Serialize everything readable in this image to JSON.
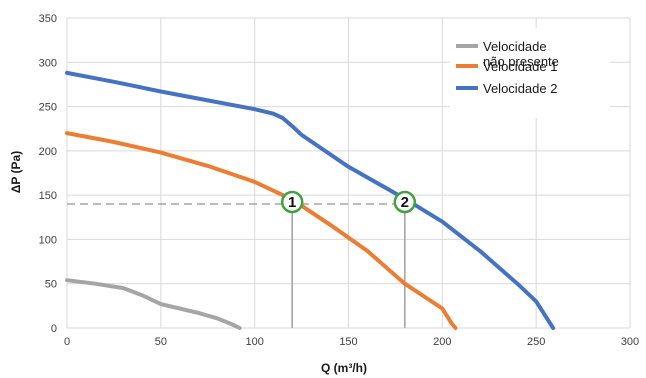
{
  "chart_data": {
    "type": "line",
    "title": "",
    "xlabel": "Q (m³/h)",
    "ylabel": "ΔP (Pa)",
    "xlim": [
      0,
      300
    ],
    "ylim": [
      0,
      350
    ],
    "xticks": [
      0,
      50,
      100,
      150,
      200,
      250,
      300
    ],
    "yticks": [
      0,
      50,
      100,
      150,
      200,
      250,
      300,
      350
    ],
    "x_tick_labels": [
      "0",
      "50",
      "100",
      "150",
      "200",
      "250",
      "300"
    ],
    "y_tick_labels": [
      "0",
      "50",
      "100",
      "150",
      "200",
      "250",
      "300",
      "350"
    ],
    "grid": true,
    "legend_position": "top-right",
    "series": [
      {
        "name": "Velocidade 2",
        "color": "#4472C4",
        "points": [
          [
            0,
            288
          ],
          [
            25,
            278
          ],
          [
            50,
            267
          ],
          [
            75,
            257
          ],
          [
            100,
            247
          ],
          [
            110,
            242
          ],
          [
            115,
            237
          ],
          [
            120,
            228
          ],
          [
            125,
            218
          ],
          [
            150,
            182
          ],
          [
            180,
            146
          ],
          [
            200,
            120
          ],
          [
            220,
            87
          ],
          [
            240,
            50
          ],
          [
            250,
            30
          ],
          [
            256,
            10
          ],
          [
            259,
            0
          ]
        ]
      },
      {
        "name": "Velocidade 1",
        "color": "#ED7D31",
        "points": [
          [
            0,
            220
          ],
          [
            25,
            210
          ],
          [
            50,
            198
          ],
          [
            75,
            183
          ],
          [
            100,
            165
          ],
          [
            120,
            145
          ],
          [
            140,
            117
          ],
          [
            160,
            87
          ],
          [
            180,
            50
          ],
          [
            200,
            22
          ],
          [
            205,
            5
          ],
          [
            207,
            0
          ]
        ]
      },
      {
        "name": "Velocidade",
        "name_line2": "não presente",
        "color": "#A5A5A5",
        "points": [
          [
            0,
            54
          ],
          [
            15,
            50
          ],
          [
            30,
            45
          ],
          [
            40,
            37
          ],
          [
            50,
            27
          ],
          [
            60,
            22
          ],
          [
            70,
            17
          ],
          [
            80,
            11
          ],
          [
            87,
            5
          ],
          [
            92,
            0
          ]
        ]
      }
    ],
    "reference": {
      "y": 140,
      "color": "#A5A5A5",
      "markers": [
        {
          "label": "1",
          "x": 120,
          "y": 140,
          "color": "#3FA33F"
        },
        {
          "label": "2",
          "x": 180,
          "y": 140,
          "color": "#3FA33F"
        }
      ]
    }
  }
}
